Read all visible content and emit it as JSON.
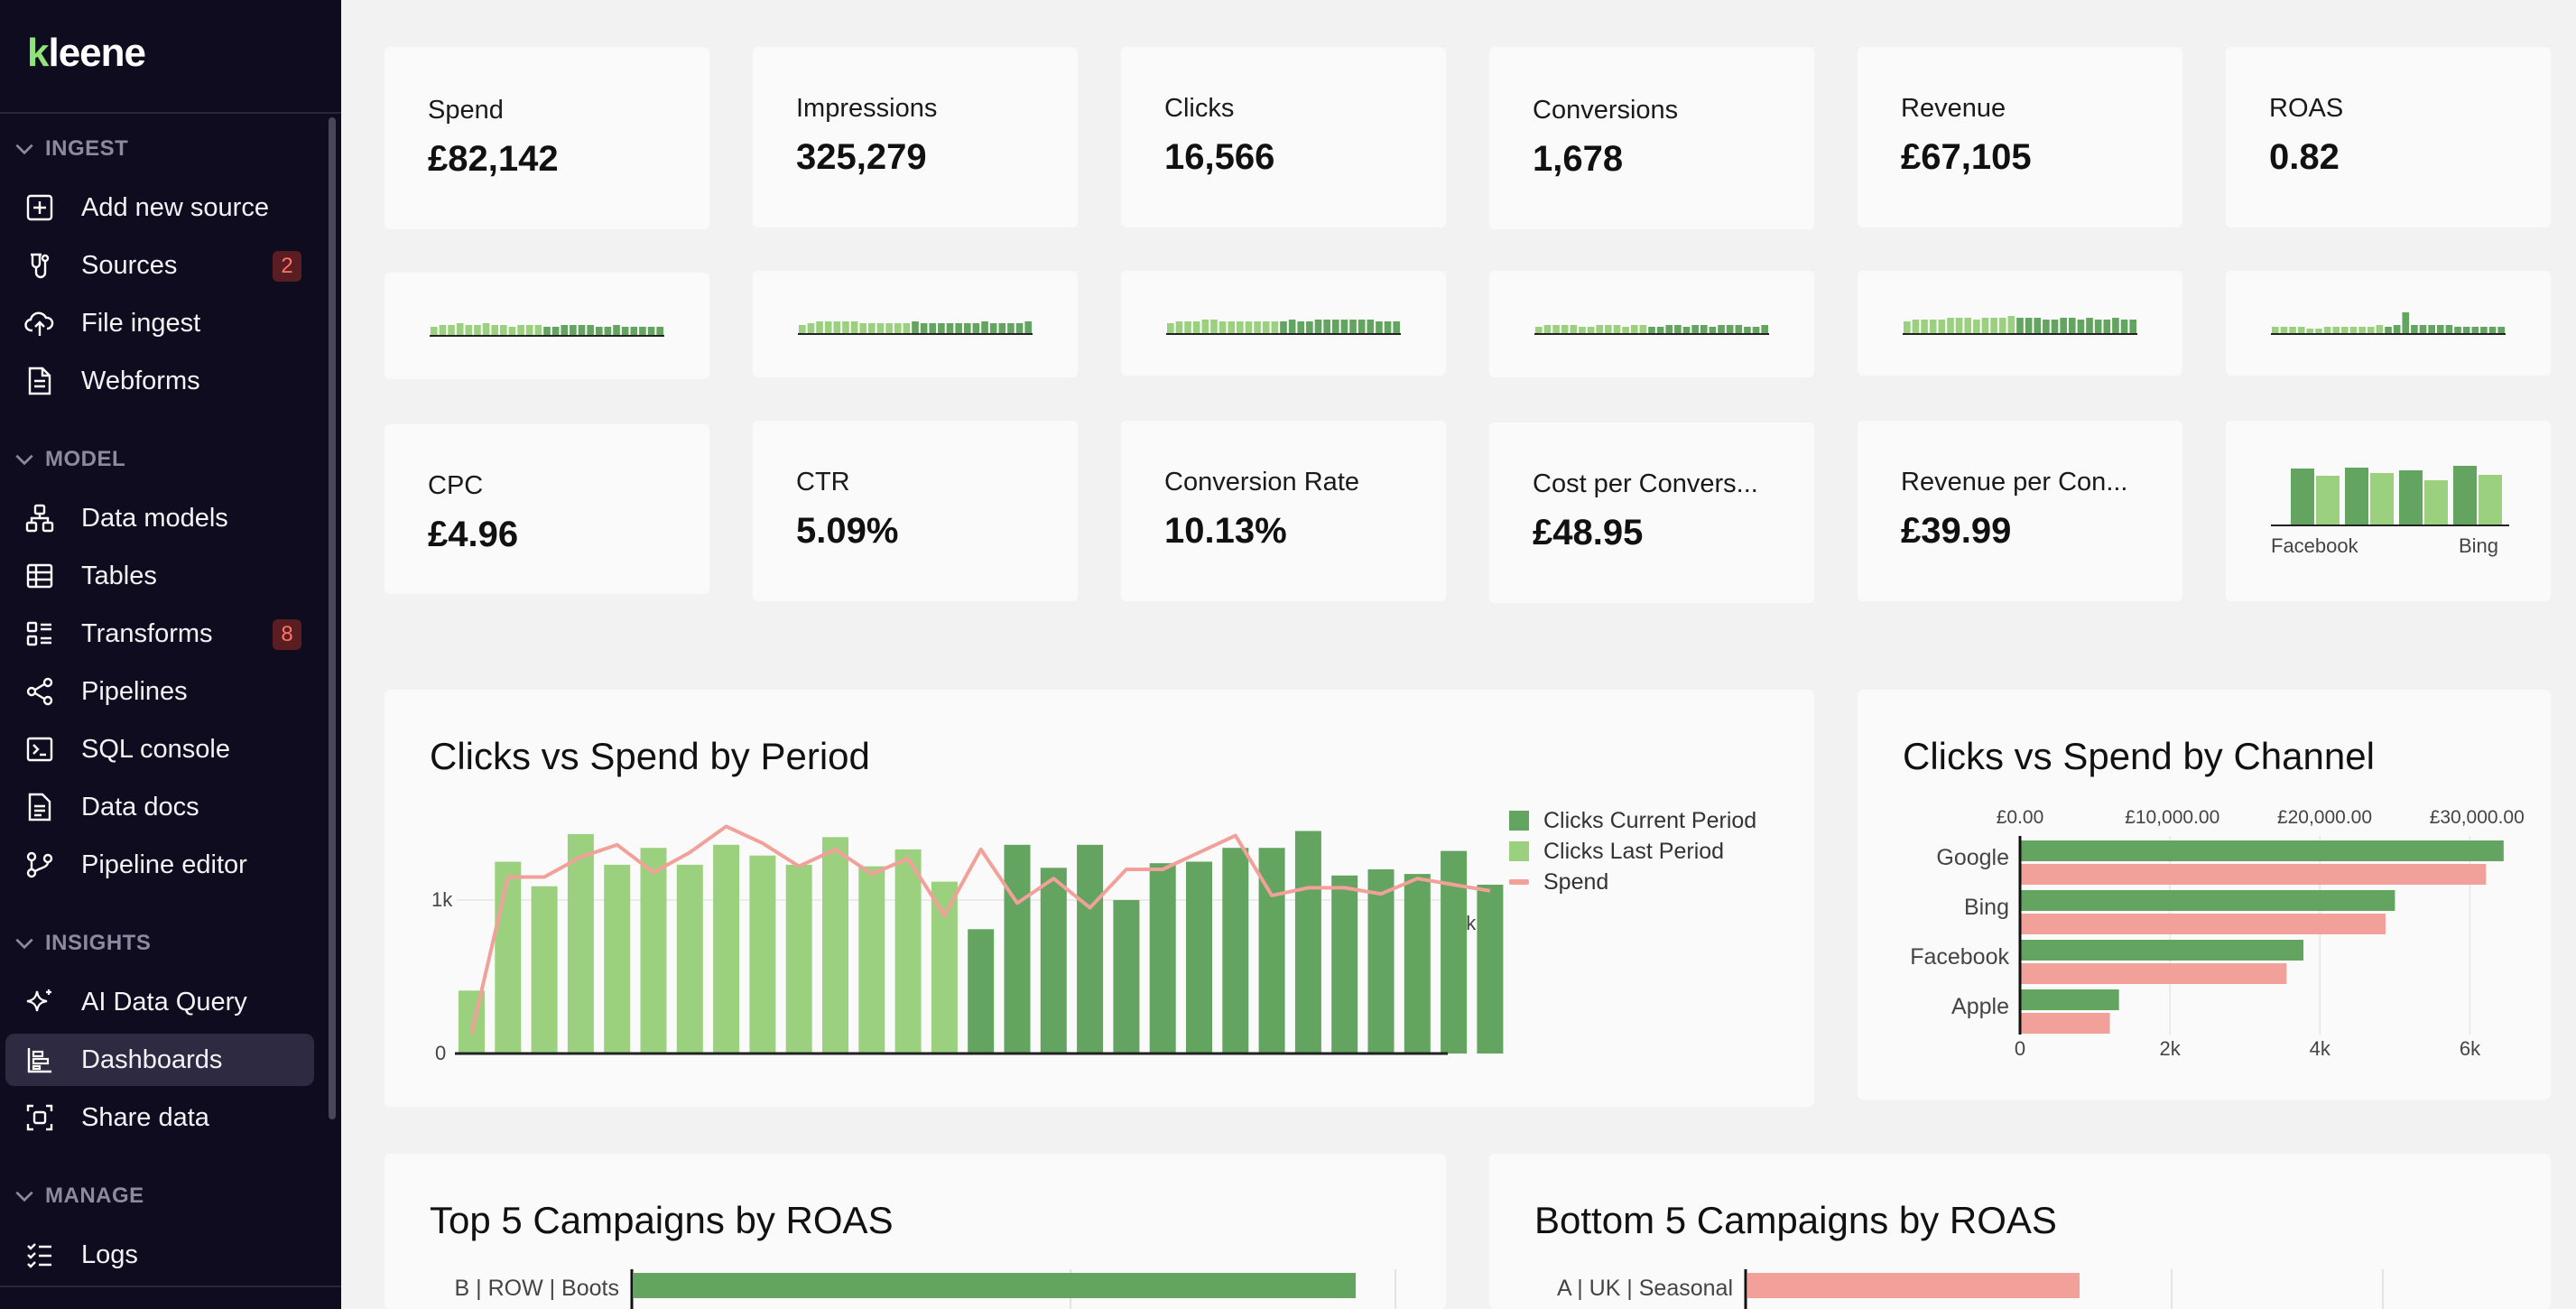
{
  "app": {
    "name": "kleene"
  },
  "colors": {
    "dark_green": "#63a460",
    "light_green": "#9bd17e",
    "pink": "#f2a09a",
    "sidebar_bg": "#0f0c1f",
    "badge_text": "#ff7466"
  },
  "sidebar": {
    "sections": [
      {
        "label": "INGEST",
        "items": [
          {
            "label": "Add new source",
            "icon": "plus-square-icon"
          },
          {
            "label": "Sources",
            "icon": "plug-icon",
            "badge": "2"
          },
          {
            "label": "File ingest",
            "icon": "cloud-upload-icon"
          },
          {
            "label": "Webforms",
            "icon": "document-icon"
          }
        ]
      },
      {
        "label": "MODEL",
        "items": [
          {
            "label": "Data models",
            "icon": "hierarchy-icon"
          },
          {
            "label": "Tables",
            "icon": "table-icon"
          },
          {
            "label": "Transforms",
            "icon": "transform-icon",
            "badge": "8"
          },
          {
            "label": "Pipelines",
            "icon": "share-nodes-icon"
          },
          {
            "label": "SQL console",
            "icon": "terminal-icon"
          },
          {
            "label": "Data docs",
            "icon": "doc-text-icon"
          },
          {
            "label": "Pipeline editor",
            "icon": "pipeline-editor-icon"
          }
        ]
      },
      {
        "label": "INSIGHTS",
        "items": [
          {
            "label": "AI Data Query",
            "icon": "sparkle-icon"
          },
          {
            "label": "Dashboards",
            "icon": "dashboard-icon",
            "active": true
          },
          {
            "label": "Share data",
            "icon": "share-data-icon"
          }
        ]
      },
      {
        "label": "MANAGE",
        "items": [
          {
            "label": "Logs",
            "icon": "checklist-icon"
          }
        ]
      }
    ]
  },
  "kpis": [
    {
      "label": "Spend",
      "value": "£82,142"
    },
    {
      "label": "Impressions",
      "value": "325,279"
    },
    {
      "label": "Clicks",
      "value": "16,566"
    },
    {
      "label": "Conversions",
      "value": "1,678"
    },
    {
      "label": "Revenue",
      "value": "£67,105"
    },
    {
      "label": "ROAS",
      "value": "0.82"
    }
  ],
  "kpis2": [
    {
      "label": "CPC",
      "value": "£4.96"
    },
    {
      "label": "CTR",
      "value": "5.09%"
    },
    {
      "label": "Conversion Rate",
      "value": "10.13%"
    },
    {
      "label": "Cost per Convers...",
      "value": "£48.95"
    },
    {
      "label": "Revenue per Con...",
      "value": "£39.99"
    }
  ],
  "sparklines": [
    {
      "values": [
        5,
        6,
        6,
        7,
        6,
        6,
        7,
        6,
        6,
        5,
        6,
        6,
        6,
        5,
        5,
        6,
        6,
        6,
        6,
        5,
        5,
        6,
        5,
        5,
        5,
        5,
        5
      ]
    },
    {
      "values": [
        5,
        6,
        7,
        7,
        7,
        7,
        7,
        6,
        6,
        6,
        6,
        6,
        6,
        7,
        6,
        6,
        6,
        6,
        6,
        6,
        6,
        7,
        6,
        6,
        6,
        6,
        7
      ]
    },
    {
      "values": [
        6,
        7,
        7,
        7,
        8,
        8,
        7,
        7,
        7,
        7,
        7,
        7,
        7,
        7,
        8,
        7,
        7,
        8,
        8,
        8,
        8,
        8,
        8,
        8,
        7,
        7,
        7
      ]
    },
    {
      "values": [
        4,
        5,
        5,
        5,
        5,
        4,
        4,
        5,
        5,
        5,
        4,
        5,
        5,
        4,
        4,
        5,
        5,
        4,
        5,
        5,
        4,
        5,
        5,
        5,
        4,
        4,
        5
      ]
    },
    {
      "values": [
        7,
        8,
        8,
        8,
        8,
        9,
        9,
        9,
        8,
        9,
        9,
        9,
        10,
        9,
        9,
        9,
        8,
        8,
        9,
        9,
        8,
        9,
        8,
        8,
        9,
        8,
        8
      ]
    },
    {
      "values": [
        4,
        4,
        4,
        4,
        3,
        3,
        4,
        4,
        4,
        4,
        4,
        4,
        5,
        4,
        5,
        12,
        5,
        5,
        5,
        5,
        5,
        4,
        4,
        4,
        4,
        4,
        4
      ]
    }
  ],
  "mini_bar": {
    "values_dark": [
      63,
      64,
      61,
      66
    ],
    "values_light": [
      55,
      58,
      50,
      56
    ],
    "labels": [
      "Facebook",
      "Bing"
    ]
  },
  "panels": {
    "period": {
      "title": "Clicks vs Spend by Period",
      "legend": [
        "Clicks Current Period",
        "Clicks Last Period",
        "Spend"
      ]
    },
    "channel": {
      "title": "Clicks vs Spend by Channel"
    },
    "top5": {
      "title": "Top 5 Campaigns by ROAS"
    },
    "bottom5": {
      "title": "Bottom 5 Campaigns by ROAS"
    }
  },
  "chart_data": [
    {
      "type": "bar",
      "title": "Clicks vs Spend by Period",
      "ylim": [
        0,
        1500
      ],
      "yticks_left": [
        "0",
        "1k"
      ],
      "yticks_right": [
        "5k"
      ],
      "series": [
        {
          "name": "Clicks Last Period",
          "values": [
            410,
            1250,
            1090,
            1430,
            1230,
            1340,
            1230,
            1360,
            1290,
            1230,
            1410,
            1220,
            1330,
            1120
          ]
        },
        {
          "name": "Clicks Current Period",
          "values": [
            810,
            1360,
            1210,
            1360,
            1000,
            1240,
            1250,
            1340,
            1340,
            1450,
            1160,
            1200,
            1170,
            1320,
            1100
          ]
        },
        {
          "name": "Spend",
          "values": [
            130,
            1150,
            1150,
            1280,
            1360,
            1180,
            1310,
            1480,
            1370,
            1220,
            1330,
            1170,
            1270,
            900,
            1330,
            980,
            1140,
            950,
            1200,
            1200,
            1310,
            1420,
            1030,
            1080,
            1080,
            1040,
            1140,
            1100,
            1060
          ]
        }
      ]
    },
    {
      "type": "bar",
      "title": "Clicks vs Spend by Channel",
      "categories": [
        "Google",
        "Bing",
        "Facebook",
        "Apple"
      ],
      "series": [
        {
          "name": "Clicks",
          "values": [
            6450,
            5000,
            3780,
            1320
          ]
        },
        {
          "name": "Spend",
          "values": [
            30600,
            24000,
            17500,
            5900
          ]
        }
      ],
      "xticks_clicks": [
        "0",
        "2k",
        "4k",
        "6k"
      ],
      "xticks_spend": [
        "£0.00",
        "£10,000.00",
        "£20,000.00",
        "£30,000.00"
      ]
    },
    {
      "type": "bar",
      "title": "Top 5 Campaigns by ROAS",
      "categories": [
        "B | ROW | Boots"
      ],
      "values": [
        1
      ]
    },
    {
      "type": "bar",
      "title": "Bottom 5 Campaigns by ROAS",
      "categories": [
        "A | UK | Seasonal"
      ],
      "values": [
        1
      ]
    }
  ]
}
